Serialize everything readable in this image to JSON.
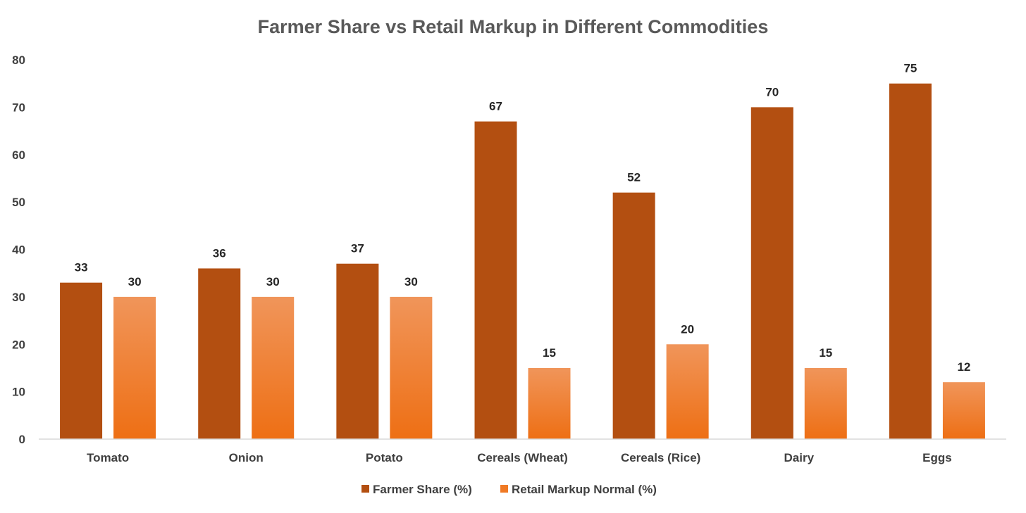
{
  "chart_data": {
    "type": "bar",
    "title": "Farmer Share vs Retail Markup in Different Commodities",
    "xlabel": "",
    "ylabel": "",
    "ylim": [
      0,
      80
    ],
    "yticks": [
      0,
      10,
      20,
      30,
      40,
      50,
      60,
      70,
      80
    ],
    "grid": false,
    "legend_position": "bottom",
    "categories": [
      "Tomato",
      "Onion",
      "Potato",
      "Cereals (Wheat)",
      "Cereals (Rice)",
      "Dairy",
      "Eggs"
    ],
    "series": [
      {
        "name": "Farmer Share (%)",
        "values": [
          33,
          36,
          37,
          67,
          52,
          70,
          75
        ],
        "color": "#B34F11"
      },
      {
        "name": "Retail Markup Normal (%)",
        "values": [
          30,
          30,
          30,
          15,
          20,
          15,
          12
        ],
        "color": "#F07A25"
      }
    ]
  }
}
